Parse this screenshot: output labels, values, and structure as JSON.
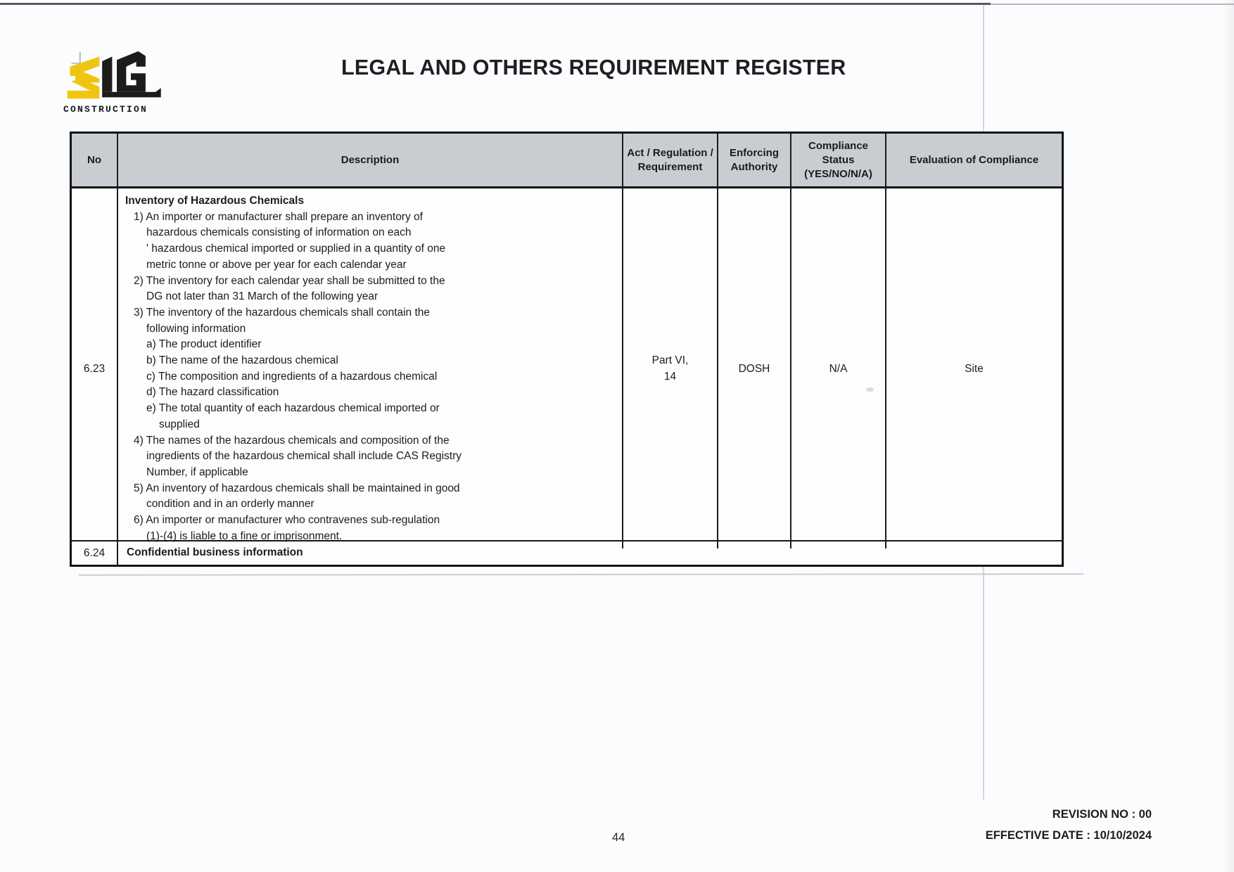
{
  "header": {
    "title": "LEGAL AND OTHERS REQUIREMENT REGISTER",
    "logo": {
      "brand": "SLG",
      "subtitle": "CONSTRUCTION",
      "colors": {
        "yellow": "#f0c512",
        "black": "#1d1c1a",
        "pole_gray": "#b5b5b5"
      }
    }
  },
  "table": {
    "header_bg": "#c9cdd2",
    "columns": [
      "No",
      "Description",
      "Act / Regulation /\nRequirement",
      "Enforcing\nAuthority",
      "Compliance Status\n(YES/NO/N/A)",
      "Evaluation of Compliance"
    ],
    "rows": [
      {
        "no": "6.23",
        "description_lines": [
          {
            "text": "Inventory of Hazardous Chemicals",
            "indent": 0,
            "bold": true
          },
          {
            "text": "1) An importer or manufacturer shall prepare an inventory of",
            "indent": 1
          },
          {
            "text": "hazardous chemicals consisting of information on each",
            "indent": 2
          },
          {
            "text": "' hazardous chemical imported or supplied in a quantity of one",
            "indent": 2
          },
          {
            "text": "metric tonne or above per year for each calendar year",
            "indent": 2
          },
          {
            "text": "2) The inventory for each calendar year shall be submitted to the",
            "indent": 1
          },
          {
            "text": "DG not later than 31 March of the following year",
            "indent": 2
          },
          {
            "text": "3) The inventory of the hazardous chemicals shall contain the",
            "indent": 1
          },
          {
            "text": "following information",
            "indent": 2
          },
          {
            "text": "a) The product identifier",
            "indent": 2
          },
          {
            "text": "b) The name of the hazardous chemical",
            "indent": 2
          },
          {
            "text": "c) The composition and ingredients of a hazardous chemical",
            "indent": 2
          },
          {
            "text": "d) The hazard classification",
            "indent": 2
          },
          {
            "text": "e) The total quantity of each hazardous chemical imported or",
            "indent": 2
          },
          {
            "text": "supplied",
            "indent": 3
          },
          {
            "text": "4) The names of the hazardous chemicals and composition of the",
            "indent": 1
          },
          {
            "text": "ingredients of the hazardous chemical shall include CAS Registry",
            "indent": 2
          },
          {
            "text": "Number, if applicable",
            "indent": 2
          },
          {
            "text": "5) An inventory of hazardous chemicals shall be maintained in good",
            "indent": 1
          },
          {
            "text": "condition and in an orderly manner",
            "indent": 2
          },
          {
            "text": "6) An importer or manufacturer who contravenes sub-regulation",
            "indent": 1
          },
          {
            "text": "(1)-(4) is liable to a fine or imprisonment.",
            "indent": 2
          }
        ],
        "act_regulation": "Part VI,\n14",
        "enforcing_authority": "DOSH",
        "compliance_status": "N/A",
        "evaluation": "Site"
      },
      {
        "no": "6.24",
        "description_lines": [
          {
            "text": "Confidential business information",
            "indent": 0,
            "bold": true
          }
        ]
      }
    ]
  },
  "footer": {
    "page_number": "44",
    "revision": "REVISION NO : 00",
    "effective_date": "EFFECTIVE DATE : 10/10/2024"
  }
}
